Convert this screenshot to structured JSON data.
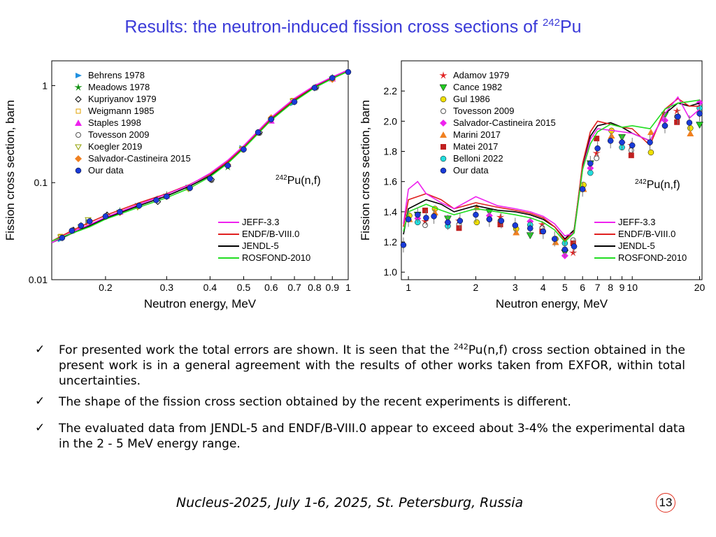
{
  "slide": {
    "title": "Results: the neutron-induced fission cross sections of",
    "title_sup": "242",
    "title_tail": "Pu",
    "page_number": "13",
    "footer": "Nucleus-2025, July 1-6, 2025, St. Petersburg, Russia"
  },
  "bullets": [
    {
      "pre": "For presented work the total errors are shown. It is seen that the ",
      "sup": "242",
      "post": "Pu(n,f) cross section obtained in the present work is in a general agreement with the results of other works taken from EXFOR, within total uncertainties."
    },
    {
      "pre": "The shape of the fission cross section obtained by the recent experiments is different.",
      "sup": "",
      "post": ""
    },
    {
      "pre": "The evaluated data from JENDL-5 and ENDF/B-VIII.0 appear to exceed about 3-4% the experimental data in the 2 - 5 MeV energy range.",
      "sup": "",
      "post": ""
    }
  ],
  "colors": {
    "title": "#3a3ad8",
    "jeff": "#ee22ee",
    "endf": "#e02020",
    "jendl": "#000000",
    "rosfond": "#22dd22",
    "ours": "#1a3bd8"
  },
  "chart_data": [
    {
      "type": "scatter",
      "xscale": "log",
      "yscale": "log",
      "xlabel": "Neutron energy, MeV",
      "ylabel": "Fission cross section, barn",
      "xlim": [
        0.14,
        1.0
      ],
      "ylim": [
        0.01,
        1.8
      ],
      "xticks": [
        0.2,
        0.3,
        0.4,
        0.5,
        0.6,
        0.7,
        0.8,
        0.9,
        1
      ],
      "xticklabels": [
        "0.2",
        "0.3",
        "0.4",
        "0.5",
        "0.6",
        "0.7",
        "0.8",
        "0.9",
        "1"
      ],
      "yticks": [
        0.01,
        0.1,
        1
      ],
      "yticklabels": [
        "0.01",
        "0.1",
        "1"
      ],
      "annotation_sup": "242",
      "annotation": "Pu(n,f)",
      "legend_position": "top-left",
      "experiments": [
        {
          "name": "Behrens 1978",
          "marker": "triangle-right",
          "color": "#2090e0"
        },
        {
          "name": "Meadows 1978",
          "marker": "star",
          "color": "#109010"
        },
        {
          "name": "Kupriyanov 1979",
          "marker": "diamond-open",
          "color": "#000000"
        },
        {
          "name": "Weigmann 1985",
          "marker": "square-open",
          "color": "#e0a000"
        },
        {
          "name": "Staples 1998",
          "marker": "triangle-up",
          "color": "#ee22ee"
        },
        {
          "name": "Tovesson 2009",
          "marker": "circle-open",
          "color": "#555555"
        },
        {
          "name": "Koegler 2019",
          "marker": "triangle-down-open",
          "color": "#90a000"
        },
        {
          "name": "Salvador-Castineira 2015",
          "marker": "diamond",
          "color": "#f08020"
        },
        {
          "name": "Our data",
          "marker": "circle",
          "color": "#1a3bd8"
        }
      ],
      "evaluations": [
        {
          "name": "JEFF-3.3",
          "color": "#ee22ee"
        },
        {
          "name": "ENDF/B-VIII.0",
          "color": "#e02020"
        },
        {
          "name": "JENDL-5",
          "color": "#000000"
        },
        {
          "name": "ROSFOND-2010",
          "color": "#22dd22"
        }
      ],
      "series": [
        {
          "name": "Our data",
          "x": [
            0.15,
            0.16,
            0.17,
            0.18,
            0.2,
            0.22,
            0.25,
            0.28,
            0.3,
            0.35,
            0.4,
            0.45,
            0.5,
            0.55,
            0.6,
            0.7,
            0.8,
            0.9,
            1.0
          ],
          "y": [
            0.027,
            0.032,
            0.036,
            0.04,
            0.045,
            0.05,
            0.058,
            0.066,
            0.072,
            0.088,
            0.11,
            0.15,
            0.22,
            0.33,
            0.45,
            0.68,
            0.95,
            1.2,
            1.38
          ]
        },
        {
          "name": "JENDL-5",
          "x": [
            0.14,
            0.16,
            0.18,
            0.2,
            0.25,
            0.3,
            0.35,
            0.4,
            0.45,
            0.5,
            0.6,
            0.7,
            0.8,
            0.9,
            1.0
          ],
          "y": [
            0.024,
            0.03,
            0.036,
            0.043,
            0.058,
            0.073,
            0.092,
            0.118,
            0.16,
            0.23,
            0.45,
            0.7,
            0.97,
            1.2,
            1.42
          ]
        },
        {
          "name": "ENDF/B-VIII.0",
          "x": [
            0.14,
            0.16,
            0.18,
            0.2,
            0.25,
            0.3,
            0.35,
            0.4,
            0.45,
            0.5,
            0.6,
            0.7,
            0.8,
            0.9,
            1.0
          ],
          "y": [
            0.025,
            0.032,
            0.039,
            0.046,
            0.062,
            0.077,
            0.096,
            0.122,
            0.165,
            0.235,
            0.46,
            0.72,
            0.99,
            1.22,
            1.44
          ]
        },
        {
          "name": "JEFF-3.3",
          "x": [
            0.14,
            0.16,
            0.18,
            0.2,
            0.25,
            0.3,
            0.35,
            0.4,
            0.45,
            0.5,
            0.6,
            0.7,
            0.8,
            0.9,
            1.0
          ],
          "y": [
            0.024,
            0.031,
            0.037,
            0.044,
            0.06,
            0.076,
            0.095,
            0.125,
            0.17,
            0.24,
            0.47,
            0.74,
            1.0,
            1.23,
            1.45
          ]
        },
        {
          "name": "ROSFOND-2010",
          "x": [
            0.14,
            0.16,
            0.18,
            0.2,
            0.25,
            0.3,
            0.35,
            0.4,
            0.45,
            0.5,
            0.6,
            0.7,
            0.8,
            0.9,
            1.0
          ],
          "y": [
            0.025,
            0.03,
            0.035,
            0.042,
            0.056,
            0.07,
            0.088,
            0.115,
            0.158,
            0.225,
            0.44,
            0.69,
            0.95,
            1.18,
            1.4
          ]
        }
      ]
    },
    {
      "type": "scatter",
      "xscale": "log",
      "yscale": "linear",
      "xlabel": "Neutron energy, MeV",
      "ylabel": "Fission cross section, barn",
      "xlim": [
        0.93,
        20.5
      ],
      "ylim": [
        0.95,
        2.4
      ],
      "xticks": [
        1,
        2,
        3,
        4,
        5,
        6,
        7,
        8,
        9,
        10,
        20
      ],
      "xticklabels": [
        "1",
        "2",
        "3",
        "4",
        "5",
        "6",
        "7",
        "8",
        "9",
        "10",
        "20"
      ],
      "yticks": [
        1.0,
        1.2,
        1.4,
        1.6,
        1.8,
        2.0,
        2.2
      ],
      "yticklabels": [
        "1.0",
        "1.2",
        "1.4",
        "1.6",
        "1.8",
        "2.0",
        "2.2"
      ],
      "annotation_sup": "242",
      "annotation": "Pu(n,f)",
      "legend_position": "top-left",
      "experiments": [
        {
          "name": "Adamov 1979",
          "marker": "star",
          "color": "#e02020"
        },
        {
          "name": "Cance 1982",
          "marker": "triangle-down",
          "color": "#22cc22"
        },
        {
          "name": "Gul 1986",
          "marker": "circle",
          "color": "#f0e000"
        },
        {
          "name": "Tovesson 2009",
          "marker": "circle-open",
          "color": "#555555"
        },
        {
          "name": "Salvador-Castineira 2015",
          "marker": "diamond",
          "color": "#ee22ee"
        },
        {
          "name": "Marini 2017",
          "marker": "triangle-up",
          "color": "#f08020"
        },
        {
          "name": "Matei 2017",
          "marker": "square",
          "color": "#c02020"
        },
        {
          "name": "Belloni 2022",
          "marker": "circle",
          "color": "#22dddd"
        },
        {
          "name": "Our data",
          "marker": "circle",
          "color": "#1a3bd8"
        }
      ],
      "evaluations": [
        {
          "name": "JEFF-3.3",
          "color": "#ee22ee"
        },
        {
          "name": "ENDF/B-VIII.0",
          "color": "#e02020"
        },
        {
          "name": "JENDL-5",
          "color": "#000000"
        },
        {
          "name": "ROSFOND-2010",
          "color": "#22dd22"
        }
      ],
      "series": [
        {
          "name": "Our data",
          "x": [
            0.95,
            1.0,
            1.1,
            1.2,
            1.3,
            1.5,
            1.7,
            2.0,
            2.3,
            2.6,
            3.0,
            3.5,
            4.0,
            4.5,
            5.0,
            5.5,
            6.0,
            6.5,
            7.0,
            8.0,
            9.0,
            10.0,
            12.0,
            14.0,
            16.0,
            18.0,
            20.0
          ],
          "y": [
            1.18,
            1.35,
            1.38,
            1.36,
            1.37,
            1.33,
            1.34,
            1.38,
            1.35,
            1.34,
            1.31,
            1.29,
            1.27,
            1.22,
            1.15,
            1.17,
            1.55,
            1.72,
            1.82,
            1.87,
            1.86,
            1.84,
            1.86,
            1.97,
            2.03,
            1.99,
            2.05
          ]
        },
        {
          "name": "JENDL-5",
          "x": [
            0.95,
            1.0,
            1.2,
            1.4,
            1.6,
            2.0,
            2.5,
            3.0,
            3.5,
            4.0,
            4.5,
            5.0,
            5.5,
            6.0,
            6.5,
            7.0,
            8.0,
            9.0,
            10.0,
            12.0,
            14.0,
            16.0,
            18.0,
            20.0
          ],
          "y": [
            1.25,
            1.42,
            1.48,
            1.45,
            1.4,
            1.44,
            1.41,
            1.4,
            1.38,
            1.35,
            1.3,
            1.22,
            1.28,
            1.7,
            1.9,
            1.97,
            1.99,
            1.96,
            1.92,
            1.87,
            2.05,
            2.12,
            2.1,
            2.12
          ]
        },
        {
          "name": "ENDF/B-VIII.0",
          "x": [
            0.95,
            1.0,
            1.2,
            1.4,
            1.6,
            2.0,
            2.5,
            3.0,
            3.5,
            4.0,
            4.5,
            5.0,
            5.5,
            6.0,
            6.5,
            7.0,
            8.0,
            9.0,
            10.0,
            12.0,
            14.0,
            16.0,
            18.0,
            20.0
          ],
          "y": [
            1.3,
            1.48,
            1.52,
            1.48,
            1.42,
            1.46,
            1.43,
            1.41,
            1.39,
            1.36,
            1.3,
            1.21,
            1.27,
            1.72,
            1.93,
            2.0,
            1.98,
            1.96,
            1.95,
            1.84,
            2.08,
            2.15,
            2.1,
            2.1
          ]
        },
        {
          "name": "JEFF-3.3",
          "x": [
            0.95,
            1.0,
            1.1,
            1.2,
            1.4,
            1.6,
            2.0,
            2.5,
            3.0,
            3.5,
            4.0,
            4.5,
            5.0,
            5.5,
            6.0,
            6.5,
            7.0,
            8.0,
            9.0,
            10.0,
            12.0,
            14.0,
            16.0,
            18.0,
            20.0
          ],
          "y": [
            1.32,
            1.55,
            1.6,
            1.52,
            1.46,
            1.42,
            1.5,
            1.44,
            1.42,
            1.4,
            1.37,
            1.32,
            1.24,
            1.26,
            1.68,
            1.88,
            1.95,
            1.94,
            1.93,
            1.92,
            1.87,
            2.05,
            2.16,
            2.02,
            2.08
          ]
        },
        {
          "name": "ROSFOND-2010",
          "x": [
            0.95,
            1.0,
            1.2,
            1.4,
            1.6,
            2.0,
            2.5,
            3.0,
            3.5,
            4.0,
            4.5,
            5.0,
            5.5,
            6.0,
            6.5,
            7.0,
            8.0,
            9.0,
            10.0,
            12.0,
            14.0,
            16.0,
            18.0,
            20.0
          ],
          "y": [
            1.27,
            1.4,
            1.45,
            1.41,
            1.38,
            1.42,
            1.4,
            1.38,
            1.36,
            1.33,
            1.28,
            1.2,
            1.26,
            1.68,
            1.85,
            1.93,
            1.98,
            1.96,
            1.97,
            1.95,
            2.08,
            2.12,
            2.13,
            2.14
          ]
        }
      ]
    }
  ]
}
